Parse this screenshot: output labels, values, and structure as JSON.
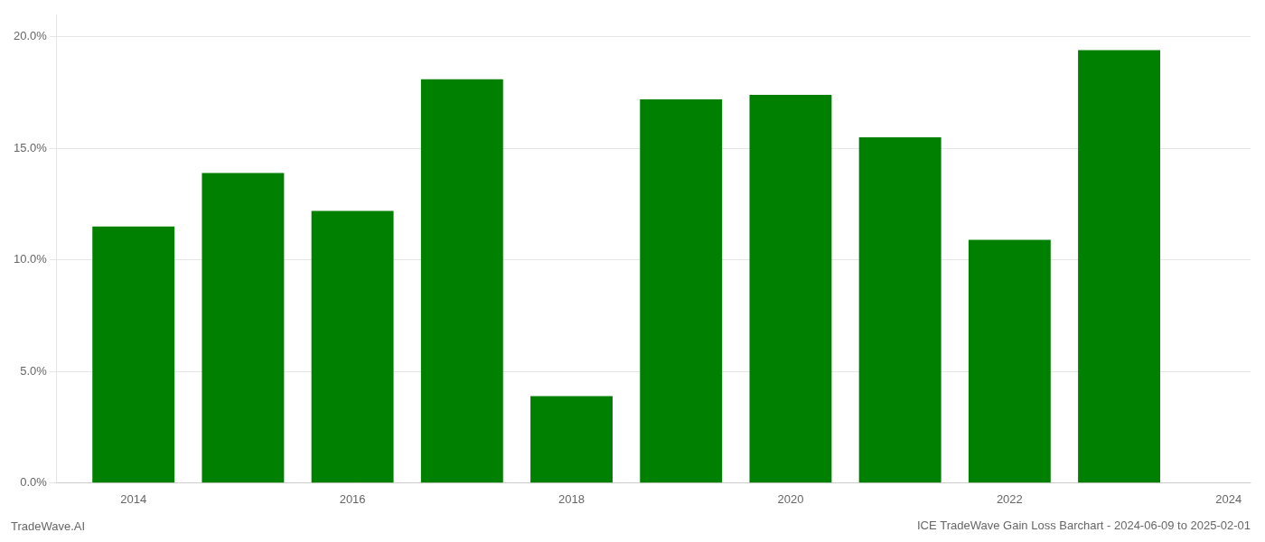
{
  "chart_data": {
    "type": "bar",
    "title": "ICE TradeWave Gain Loss Barchart - 2024-06-09 to 2025-02-01",
    "annotations": [
      "TradeWave.AI"
    ],
    "x": [
      2014,
      2015,
      2016,
      2017,
      2018,
      2019,
      2020,
      2021,
      2022,
      2023
    ],
    "values": [
      0.115,
      0.139,
      0.122,
      0.181,
      0.039,
      0.172,
      0.174,
      0.155,
      0.109,
      0.194
    ],
    "color": "#008000",
    "xlim": [
      2013.3,
      2024.2
    ],
    "xticks": [
      2014,
      2016,
      2018,
      2020,
      2022,
      2024
    ],
    "ylim": [
      0,
      0.21
    ],
    "yticks": [
      {
        "value": 0,
        "label": "0.0%"
      },
      {
        "value": 0.05,
        "label": "5.0%"
      },
      {
        "value": 0.1,
        "label": "10.0%"
      },
      {
        "value": 0.15,
        "label": "15.0%"
      },
      {
        "value": 0.2,
        "label": "20.0%"
      }
    ],
    "grid": "y"
  }
}
